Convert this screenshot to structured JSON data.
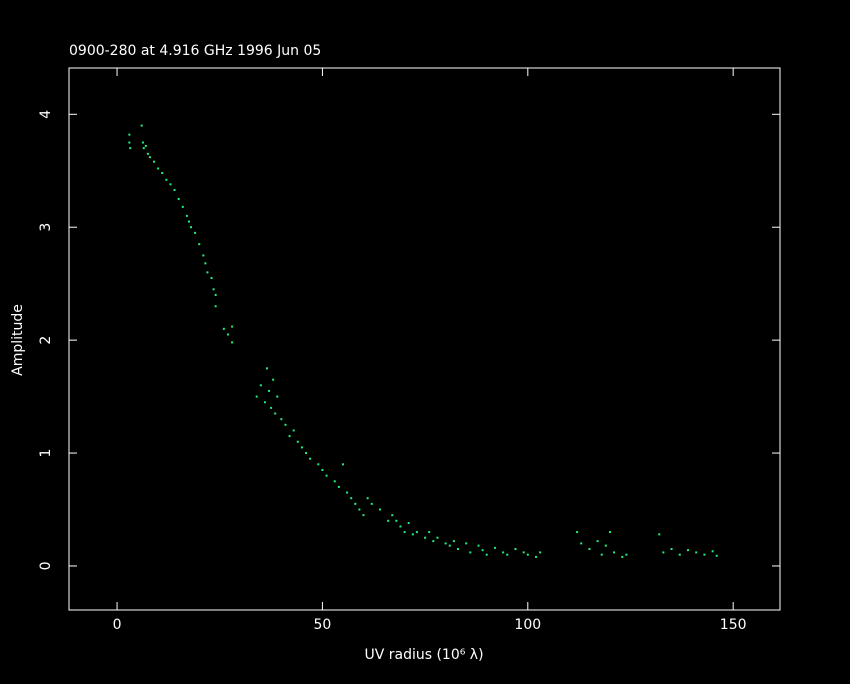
{
  "chart_data": {
    "type": "scatter",
    "title": "0900-280 at 4.916 GHz 1996 Jun 05",
    "xlabel": "UV radius  (10⁶ λ)",
    "ylabel": "Amplitude",
    "xlim": [
      -11.7,
      161.4
    ],
    "ylim": [
      -0.39,
      4.41
    ],
    "xticks": [
      0,
      50,
      100,
      150
    ],
    "yticks": [
      0,
      1,
      2,
      3,
      4
    ],
    "series": [
      {
        "color": "#22ee80",
        "x": [
          3,
          3,
          3.2,
          6,
          6.3,
          6.5,
          7,
          7.5,
          8,
          9,
          10,
          11,
          12,
          13,
          14,
          15,
          16,
          17,
          17.5,
          18,
          19,
          20,
          21,
          21.5,
          22,
          23,
          23.5,
          24,
          24,
          26,
          27,
          28,
          28,
          34,
          35,
          36,
          36.5,
          37,
          37.5,
          38,
          38.5,
          39,
          40,
          41,
          42,
          43,
          44,
          45,
          46,
          47,
          49,
          50,
          51,
          53,
          54,
          55,
          56,
          57,
          58,
          59,
          60,
          61,
          62,
          64,
          66,
          67,
          68,
          69,
          70,
          71,
          72,
          73,
          75,
          76,
          77,
          78,
          80,
          81,
          82,
          83,
          85,
          86,
          88,
          89,
          90,
          92,
          94,
          95,
          97,
          99,
          100,
          102,
          103,
          112,
          113,
          115,
          117,
          118,
          119,
          120,
          121,
          123,
          124,
          132,
          133,
          135,
          137,
          139,
          141,
          143,
          145,
          146
        ],
        "values": [
          3.75,
          3.82,
          3.7,
          3.9,
          3.75,
          3.7,
          3.72,
          3.65,
          3.62,
          3.58,
          3.52,
          3.48,
          3.42,
          3.38,
          3.33,
          3.25,
          3.18,
          3.1,
          3.05,
          3.0,
          2.95,
          2.85,
          2.75,
          2.68,
          2.6,
          2.55,
          2.45,
          2.3,
          2.4,
          2.1,
          2.05,
          1.98,
          2.12,
          1.5,
          1.6,
          1.45,
          1.75,
          1.55,
          1.4,
          1.65,
          1.35,
          1.5,
          1.3,
          1.25,
          1.15,
          1.2,
          1.1,
          1.05,
          1.0,
          0.95,
          0.9,
          0.85,
          0.8,
          0.75,
          0.7,
          0.9,
          0.65,
          0.6,
          0.55,
          0.5,
          0.45,
          0.6,
          0.55,
          0.5,
          0.4,
          0.45,
          0.4,
          0.35,
          0.3,
          0.38,
          0.28,
          0.3,
          0.25,
          0.3,
          0.22,
          0.25,
          0.2,
          0.18,
          0.22,
          0.15,
          0.2,
          0.12,
          0.18,
          0.14,
          0.1,
          0.16,
          0.12,
          0.1,
          0.15,
          0.12,
          0.1,
          0.08,
          0.12,
          0.3,
          0.2,
          0.15,
          0.22,
          0.1,
          0.18,
          0.3,
          0.12,
          0.08,
          0.1,
          0.28,
          0.12,
          0.15,
          0.1,
          0.14,
          0.12,
          0.1,
          0.13,
          0.09
        ]
      }
    ]
  }
}
